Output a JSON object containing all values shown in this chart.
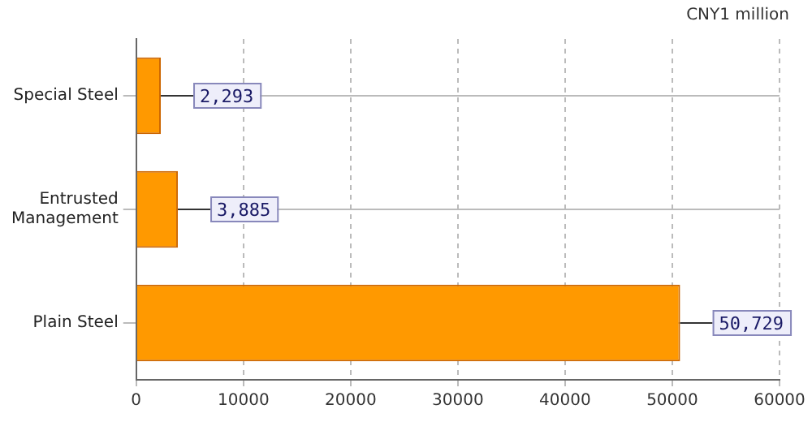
{
  "chart_data": {
    "type": "bar",
    "orientation": "horizontal",
    "categories": [
      "Special Steel",
      "Entrusted Management",
      "Plain Steel"
    ],
    "values": [
      2293,
      3885,
      50729
    ],
    "value_labels": [
      "2,293",
      "3,885",
      "50,729"
    ],
    "color": "#ff9900",
    "xlim": [
      0,
      60000
    ],
    "xticks": [
      0,
      10000,
      20000,
      30000,
      40000,
      50000,
      60000
    ],
    "grid": true,
    "legend": false,
    "annotations": [
      "CNY1 million"
    ]
  }
}
